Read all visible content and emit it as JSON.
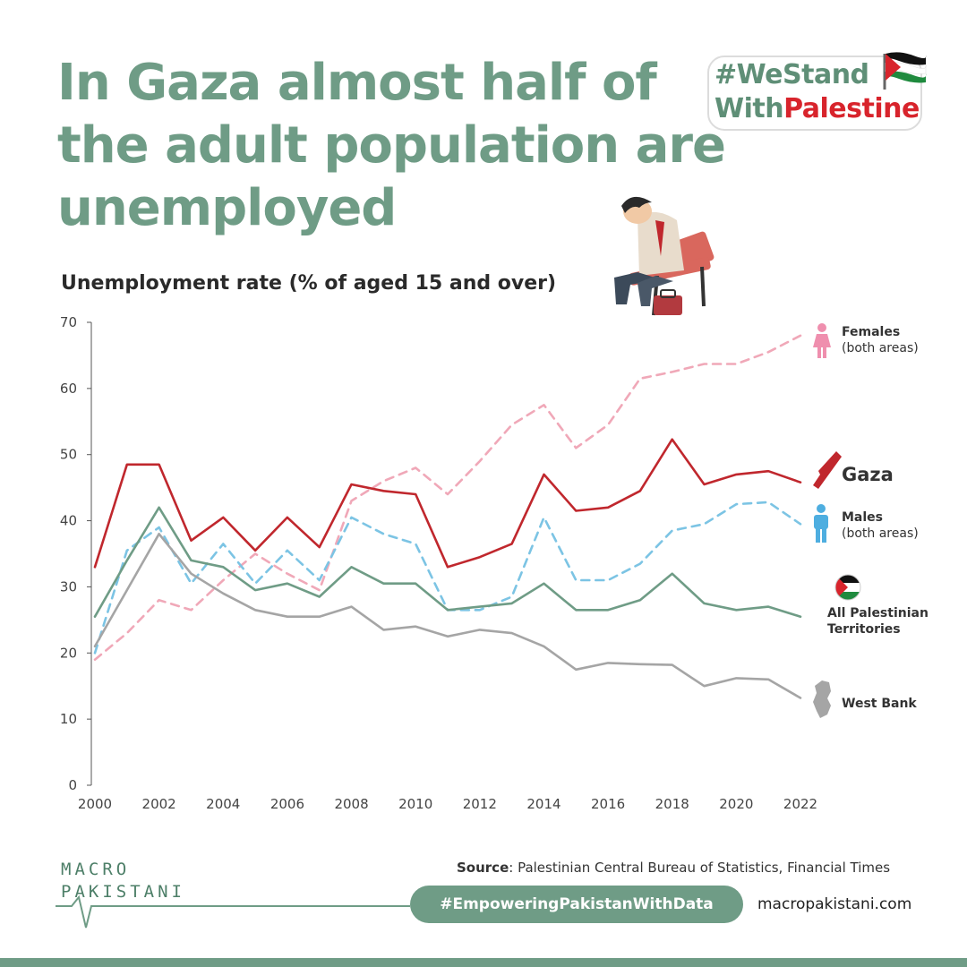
{
  "title": "In Gaza almost half of the adult population are unemployed",
  "badge": {
    "line1": "#WeStand",
    "line2_prefix": "With",
    "line2_highlight": "Palestine"
  },
  "subtitle": "Unemployment rate (% of aged 15 and over)",
  "legend": {
    "females_title": "Females",
    "females_sub": "(both areas)",
    "gaza": "Gaza",
    "males_title": "Males",
    "males_sub": "(both areas)",
    "all_line1": "All Palestinian",
    "all_line2": "Territories",
    "westbank": "West Bank"
  },
  "footer": {
    "logo_line1": "MACRO",
    "logo_line2": "PAKISTANI",
    "source_label": "Source",
    "source_text": ": Palestinian Central Bureau of Statistics, Financial Times",
    "hashtag": "#EmpoweringPakistanWithData",
    "website": "macropakistani.com"
  },
  "colors": {
    "accent": "#6f9c86",
    "gaza": "#c0272d",
    "females": "#f0a8b8",
    "males": "#7cc4e4",
    "all": "#6f9c86",
    "westbank": "#a5a5a5"
  },
  "chart_data": {
    "type": "line",
    "x": [
      2000,
      2001,
      2002,
      2003,
      2004,
      2005,
      2006,
      2007,
      2008,
      2009,
      2010,
      2011,
      2012,
      2013,
      2014,
      2015,
      2016,
      2017,
      2018,
      2019,
      2020,
      2021,
      2022
    ],
    "xticks": [
      2000,
      2002,
      2004,
      2006,
      2008,
      2010,
      2012,
      2014,
      2016,
      2018,
      2020,
      2022
    ],
    "yticks": [
      0,
      10,
      20,
      30,
      40,
      50,
      60,
      70
    ],
    "ylim": [
      0,
      70
    ],
    "title": "Unemployment rate (% of aged 15 and over)",
    "series": [
      {
        "name": "Females (both areas)",
        "style": "dashed",
        "color": "#f0a8b8",
        "values": [
          19,
          23,
          28,
          26.5,
          31,
          35,
          32,
          29.5,
          43,
          46,
          48,
          44,
          49,
          54.5,
          57.5,
          51,
          54.5,
          61.5,
          62.5,
          63.7,
          63.7,
          65.5,
          68
        ]
      },
      {
        "name": "Gaza",
        "style": "solid",
        "color": "#c0272d",
        "values": [
          33,
          48.5,
          48.5,
          37,
          40.5,
          35.5,
          40.5,
          36,
          45.5,
          44.5,
          44,
          33,
          34.5,
          36.5,
          47,
          41.5,
          42,
          44.5,
          52.3,
          45.5,
          47,
          47.5,
          45.8
        ]
      },
      {
        "name": "Males (both areas)",
        "style": "dashed",
        "color": "#7cc4e4",
        "values": [
          20,
          35.5,
          39,
          30.5,
          36.5,
          30.5,
          35.5,
          31,
          40.5,
          38,
          36.5,
          26.5,
          26.5,
          28.5,
          40.5,
          31,
          31,
          33.5,
          38.5,
          39.5,
          42.5,
          42.8,
          39.5
        ]
      },
      {
        "name": "All Palestinian Territories",
        "style": "solid",
        "color": "#6f9c86",
        "values": [
          25.5,
          34,
          42,
          34,
          33,
          29.5,
          30.5,
          28.5,
          33,
          30.5,
          30.5,
          26.5,
          27,
          27.5,
          30.5,
          26.5,
          26.5,
          28,
          32,
          27.5,
          26.5,
          27,
          25.5
        ]
      },
      {
        "name": "West Bank",
        "style": "solid",
        "color": "#a5a5a5",
        "values": [
          21,
          29.5,
          38,
          32,
          29,
          26.5,
          25.5,
          25.5,
          27,
          23.5,
          24,
          22.5,
          23.5,
          23,
          21,
          17.5,
          18.5,
          18.3,
          18.2,
          15,
          16.2,
          16,
          13.2
        ]
      }
    ]
  }
}
